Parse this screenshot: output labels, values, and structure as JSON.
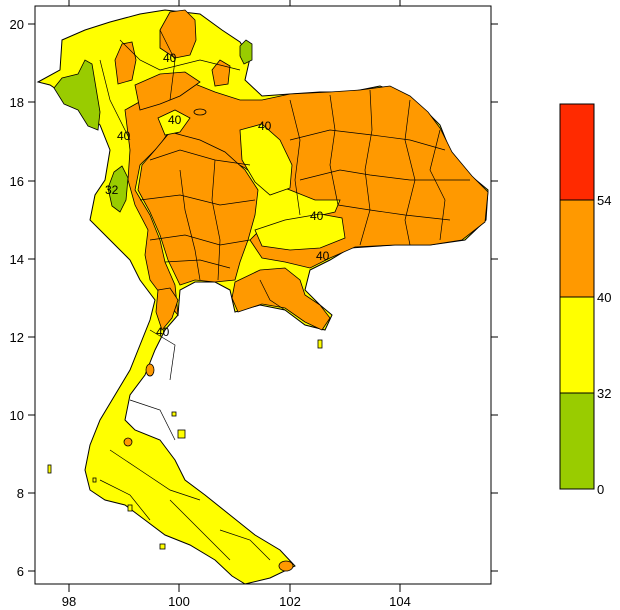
{
  "map": {
    "x_ticks": [
      "98",
      "100",
      "102",
      "104"
    ],
    "y_ticks": [
      "20",
      "18",
      "16",
      "14",
      "12",
      "10",
      "8",
      "6"
    ],
    "contour_labels": [
      "40",
      "40",
      "40",
      "40",
      "40",
      "40",
      "40",
      "32"
    ]
  },
  "legend": {
    "labels": [
      "54",
      "40",
      "32",
      "0"
    ],
    "bands": [
      {
        "range": "54+",
        "color": "#ff2a00"
      },
      {
        "range": "40-54",
        "color": "#ff9900"
      },
      {
        "range": "32-40",
        "color": "#ffff00"
      },
      {
        "range": "0-32",
        "color": "#99cc00"
      }
    ]
  },
  "colors": {
    "red": "#ff2a00",
    "orange": "#ff9900",
    "yellow": "#ffff00",
    "green": "#99cc00"
  }
}
